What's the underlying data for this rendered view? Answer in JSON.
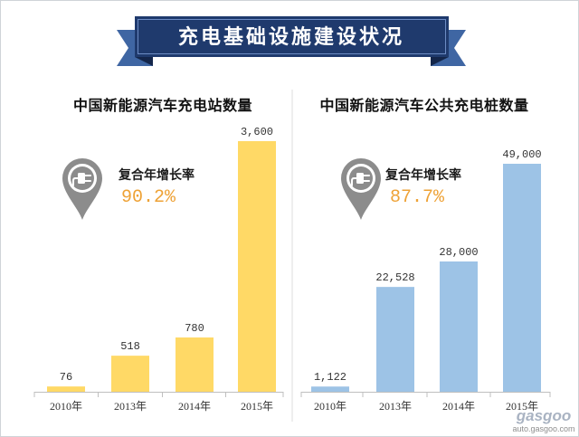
{
  "banner": {
    "title": "充电基础设施建设状况"
  },
  "colors": {
    "banner": "#1f3a6d",
    "banner_tail": "#3f66a3",
    "banner_fold": "#14264a",
    "accent": "#eea236",
    "axis": "#bfbfbf",
    "divider": "#dcdcdc",
    "icon": "#8c8c8c"
  },
  "chart_data": [
    {
      "type": "bar",
      "title": "中国新能源汽车充电站数量",
      "categories": [
        "2010年",
        "2013年",
        "2014年",
        "2015年"
      ],
      "values": [
        76,
        518,
        780,
        3600
      ],
      "data_labels": [
        "76",
        "518",
        "780",
        "3,600"
      ],
      "bar_color": "#ffd966",
      "grid": false,
      "legend": false,
      "annotation": {
        "icon": "charging-pin-icon",
        "label": "复合年增长率",
        "value": "90.2%"
      }
    },
    {
      "type": "bar",
      "title": "中国新能源汽车公共充电桩数量",
      "categories": [
        "2010年",
        "2013年",
        "2014年",
        "2015年"
      ],
      "values": [
        1122,
        22528,
        28000,
        49000
      ],
      "data_labels": [
        "1,122",
        "22,528",
        "28,000",
        "49,000"
      ],
      "bar_color": "#9dc3e6",
      "grid": false,
      "legend": false,
      "annotation": {
        "icon": "charging-pin-icon",
        "label": "复合年增长率",
        "value": "87.7%"
      }
    }
  ],
  "watermark": {
    "logo": "gasgoo",
    "url": "auto.gasgoo.com"
  }
}
